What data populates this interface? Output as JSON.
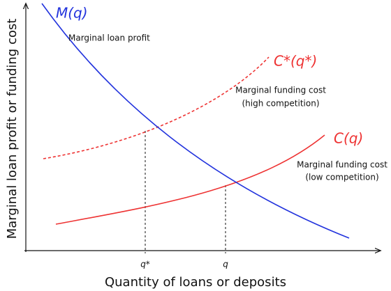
{
  "axes": {
    "x_label": "Quantity of loans or deposits",
    "y_label": "Marginal loan profit or funding cost"
  },
  "curves": [
    {
      "label": "M(q)",
      "description": [
        "Marginal loan profit"
      ]
    },
    {
      "label": "C*(q*)",
      "description": [
        "Marginal funding cost",
        "(high competition)"
      ]
    },
    {
      "label": "C(q)",
      "description": [
        "Marginal funding cost",
        "(low competition)"
      ]
    }
  ],
  "x_markers": [
    "q*",
    "q"
  ]
}
